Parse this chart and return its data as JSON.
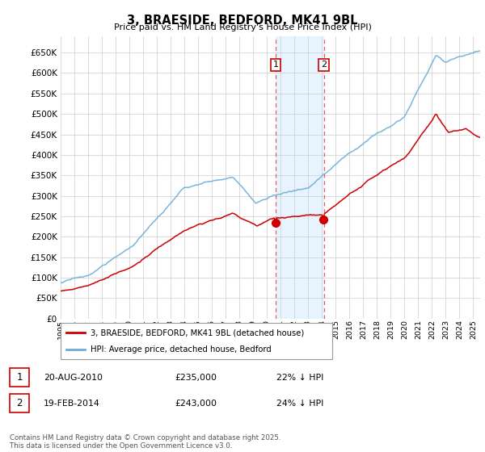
{
  "title": "3, BRAESIDE, BEDFORD, MK41 9BL",
  "subtitle": "Price paid vs. HM Land Registry's House Price Index (HPI)",
  "yticks": [
    0,
    50000,
    100000,
    150000,
    200000,
    250000,
    300000,
    350000,
    400000,
    450000,
    500000,
    550000,
    600000,
    650000
  ],
  "xlim_start": 1995.0,
  "xlim_end": 2025.5,
  "sale1_date": 2010.64,
  "sale1_price": 235000,
  "sale2_date": 2014.13,
  "sale2_price": 243000,
  "hpi_color": "#6baed6",
  "price_color": "#cc0000",
  "shade_color": "#ddeeff",
  "dashed_color": "#e06060",
  "legend_line1": "3, BRAESIDE, BEDFORD, MK41 9BL (detached house)",
  "legend_line2": "HPI: Average price, detached house, Bedford",
  "footer_text": "Contains HM Land Registry data © Crown copyright and database right 2025.\nThis data is licensed under the Open Government Licence v3.0."
}
